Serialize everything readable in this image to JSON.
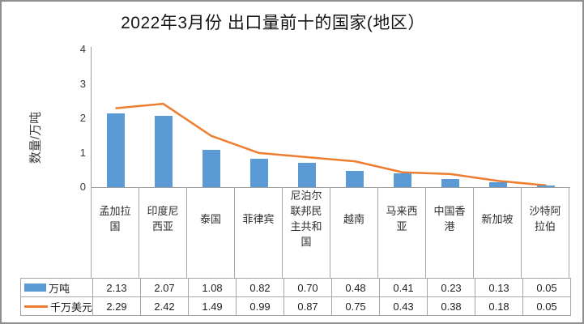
{
  "title": "2022年3月份 出口量前十的国家(地区）",
  "colors": {
    "bar": "#5B9BD5",
    "line": "#ED7D31",
    "grid_border": "#a6a6a6",
    "axis": "#9e9e9e",
    "frame_border": "#8e8e8e",
    "text": "#2e2e2e"
  },
  "chart_data": {
    "type": "bar",
    "subtype": "combo-bar-line",
    "title": "2022年3月份 出口量前十的国家(地区）",
    "ylabel": "数量/万吨",
    "xlabel": "",
    "ylim": [
      0,
      4
    ],
    "yticks": [
      0,
      1,
      2,
      3,
      4
    ],
    "grid": false,
    "legend_position": "data-table-left",
    "data_table_shown": true,
    "categories": [
      "孟加拉国",
      "印度尼西亚",
      "泰国",
      "菲律宾",
      "尼泊尔联邦民主共和国",
      "越南",
      "马来西亚",
      "中国香港",
      "新加坡",
      "沙特阿拉伯"
    ],
    "series": [
      {
        "name": "万吨",
        "type": "bar",
        "color": "#5B9BD5",
        "values": [
          2.13,
          2.07,
          1.08,
          0.82,
          0.7,
          0.48,
          0.41,
          0.23,
          0.13,
          0.05
        ],
        "labels": [
          "2.13",
          "2.07",
          "1.08",
          "0.82",
          "0.70",
          "0.48",
          "0.41",
          "0.23",
          "0.13",
          "0.05"
        ]
      },
      {
        "name": "千万美元",
        "type": "line",
        "color": "#ED7D31",
        "values": [
          2.29,
          2.42,
          1.49,
          0.99,
          0.87,
          0.75,
          0.43,
          0.38,
          0.18,
          0.05
        ],
        "labels": [
          "2.29",
          "2.42",
          "1.49",
          "0.99",
          "0.87",
          "0.75",
          "0.43",
          "0.38",
          "0.18",
          "0.05"
        ]
      }
    ]
  }
}
